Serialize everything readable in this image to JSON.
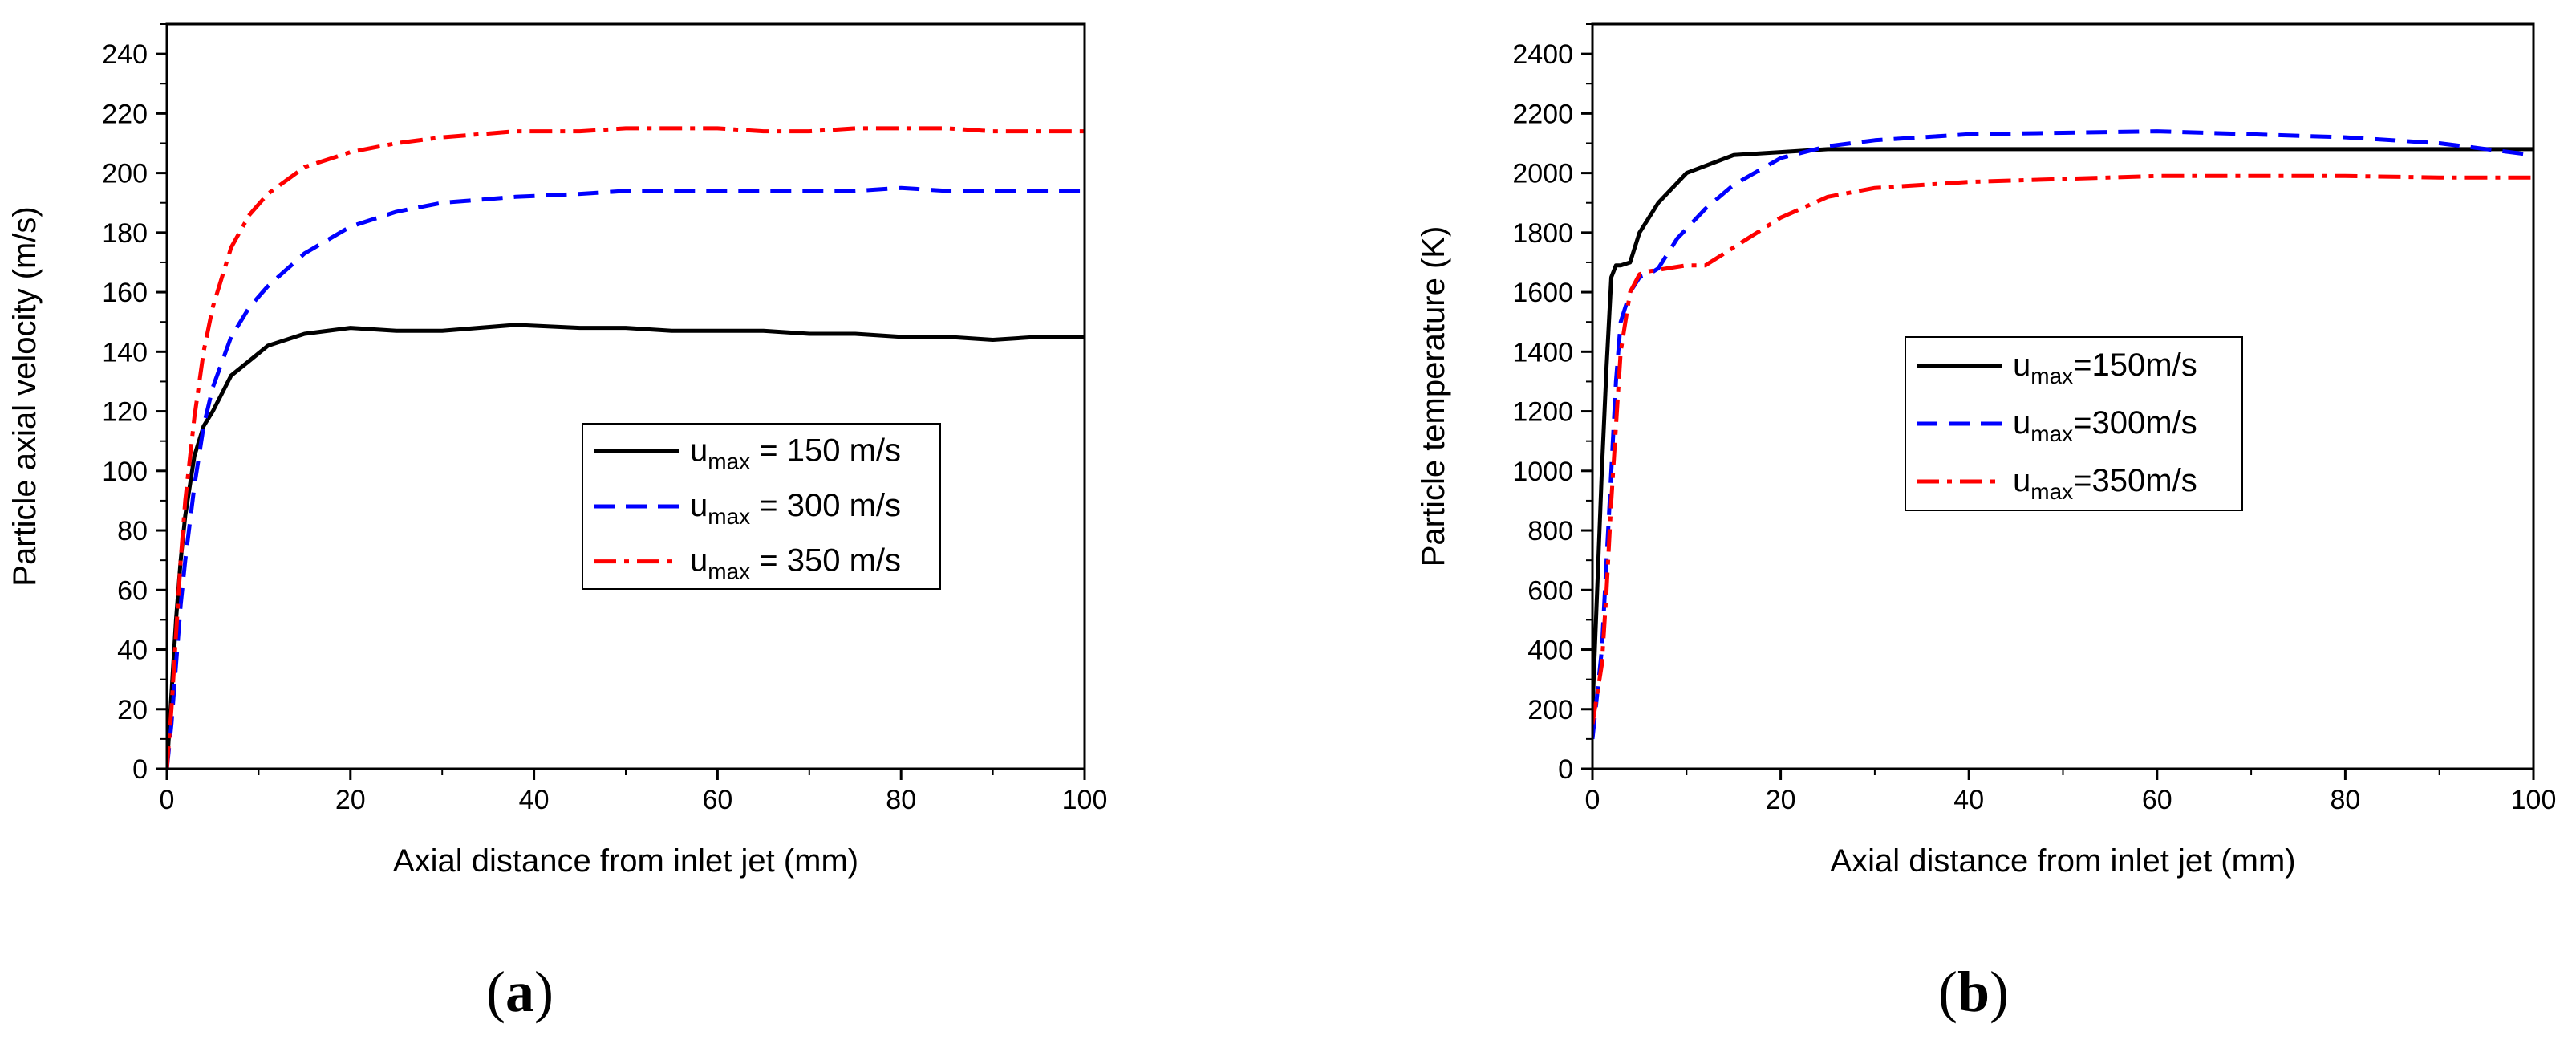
{
  "chart_data": [
    {
      "type": "line",
      "panel": "a",
      "panel_label": "a",
      "xlabel": "Axial distance from inlet jet (mm)",
      "ylabel": "Particle axial velocity (m/s)",
      "xlim": [
        0,
        100
      ],
      "ylim": [
        0,
        250
      ],
      "xticks": [
        0,
        20,
        40,
        60,
        80,
        100
      ],
      "yticks": [
        0,
        20,
        40,
        60,
        80,
        100,
        120,
        140,
        160,
        180,
        200,
        220,
        240
      ],
      "legend_position": "center-right",
      "series": [
        {
          "name": "u_max = 150 m/s",
          "label_main": "u",
          "label_sub": "max",
          "label_rest": " = 150 m/s",
          "color": "#000000",
          "dash": "solid",
          "x": [
            0,
            0.5,
            1,
            1.5,
            2,
            3,
            4,
            5,
            7,
            9,
            11,
            15,
            20,
            25,
            30,
            38,
            45,
            50,
            55,
            60,
            65,
            70,
            75,
            80,
            85,
            90,
            95,
            100
          ],
          "y": [
            0,
            25,
            50,
            70,
            85,
            105,
            115,
            120,
            132,
            137,
            142,
            146,
            148,
            147,
            147,
            149,
            148,
            148,
            147,
            147,
            147,
            146,
            146,
            145,
            145,
            144,
            145,
            145
          ]
        },
        {
          "name": "u_max = 300 m/s",
          "label_main": "u",
          "label_sub": "max",
          "label_rest": " = 300 m/s",
          "color": "#0000ff",
          "dash": "dashed",
          "x": [
            0,
            0.5,
            1,
            1.5,
            2,
            3,
            4,
            5,
            7,
            9,
            11,
            15,
            20,
            25,
            30,
            38,
            45,
            50,
            55,
            60,
            65,
            70,
            75,
            80,
            85,
            90,
            95,
            100
          ],
          "y": [
            0,
            15,
            35,
            55,
            70,
            95,
            115,
            128,
            145,
            155,
            162,
            173,
            182,
            187,
            190,
            192,
            193,
            194,
            194,
            194,
            194,
            194,
            194,
            195,
            194,
            194,
            194,
            194
          ]
        },
        {
          "name": "u_max = 350 m/s",
          "label_main": "u",
          "label_sub": "max",
          "label_rest": " = 350 m/s",
          "color": "#ff0000",
          "dash": "dashdot",
          "x": [
            0,
            0.5,
            1,
            1.5,
            2,
            3,
            4,
            5,
            7,
            9,
            11,
            15,
            20,
            25,
            30,
            38,
            45,
            50,
            55,
            60,
            65,
            70,
            75,
            80,
            85,
            90,
            95,
            100
          ],
          "y": [
            0,
            20,
            45,
            70,
            90,
            118,
            140,
            155,
            175,
            186,
            193,
            202,
            207,
            210,
            212,
            214,
            214,
            215,
            215,
            215,
            214,
            214,
            215,
            215,
            215,
            214,
            214,
            214
          ]
        }
      ]
    },
    {
      "type": "line",
      "panel": "b",
      "panel_label": "b",
      "xlabel": "Axial distance from inlet jet (mm)",
      "ylabel": "Particle temperature (K)",
      "xlim": [
        0,
        100
      ],
      "ylim": [
        0,
        2500
      ],
      "xticks": [
        0,
        20,
        40,
        60,
        80,
        100
      ],
      "yticks": [
        0,
        200,
        400,
        600,
        800,
        1000,
        1200,
        1400,
        1600,
        1800,
        2000,
        2200,
        2400
      ],
      "legend_position": "center",
      "series": [
        {
          "name": "u_max=150m/s",
          "label_main": "u",
          "label_sub": "max",
          "label_rest": "=150m/s",
          "color": "#000000",
          "dash": "solid",
          "x": [
            0,
            0.5,
            1,
            1.5,
            2,
            2.5,
            3,
            4,
            5,
            7,
            10,
            15,
            20,
            25,
            30,
            40,
            50,
            60,
            70,
            80,
            90,
            100
          ],
          "y": [
            200,
            600,
            1000,
            1350,
            1650,
            1690,
            1690,
            1700,
            1800,
            1900,
            2000,
            2060,
            2070,
            2080,
            2080,
            2080,
            2080,
            2080,
            2080,
            2080,
            2080,
            2080
          ]
        },
        {
          "name": "u_max=300m/s",
          "label_main": "u",
          "label_sub": "max",
          "label_rest": "=300m/s",
          "color": "#0000ff",
          "dash": "dashed",
          "x": [
            0,
            0.5,
            1,
            1.5,
            2,
            2.5,
            3,
            4,
            5,
            6,
            7,
            9,
            12,
            15,
            20,
            25,
            30,
            40,
            50,
            60,
            70,
            80,
            90,
            100
          ],
          "y": [
            100,
            250,
            400,
            700,
            1000,
            1300,
            1500,
            1600,
            1650,
            1660,
            1680,
            1780,
            1880,
            1960,
            2050,
            2090,
            2110,
            2130,
            2135,
            2140,
            2130,
            2120,
            2100,
            2060
          ]
        },
        {
          "name": "u_max=350m/s",
          "label_main": "u",
          "label_sub": "max",
          "label_rest": "=350m/s",
          "color": "#ff0000",
          "dash": "dashdot",
          "x": [
            0,
            0.5,
            1,
            1.5,
            2,
            2.5,
            3,
            4,
            5,
            6,
            8,
            10,
            12,
            15,
            20,
            25,
            30,
            40,
            50,
            60,
            70,
            80,
            90,
            100
          ],
          "y": [
            150,
            250,
            350,
            600,
            900,
            1150,
            1400,
            1600,
            1660,
            1670,
            1680,
            1690,
            1690,
            1750,
            1850,
            1920,
            1950,
            1970,
            1980,
            1990,
            1990,
            1990,
            1985,
            1985
          ]
        }
      ]
    }
  ]
}
